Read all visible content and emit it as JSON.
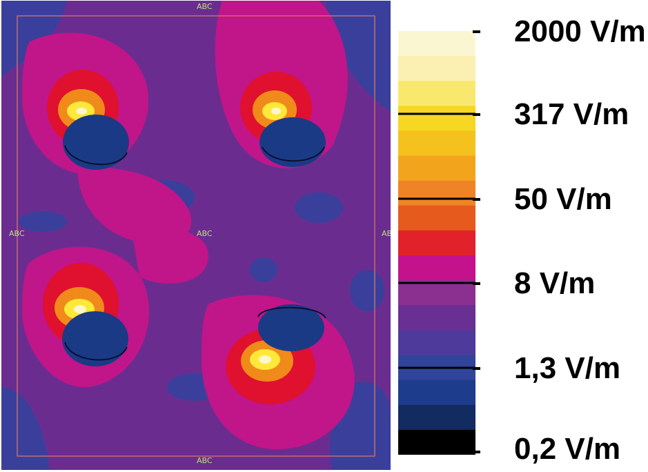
{
  "plot": {
    "markers": {
      "top": "ABC",
      "left": "ABC",
      "center": "ABC",
      "right": "ABC",
      "bottom": "ABC"
    },
    "colors": {
      "background": "#6a2d8f",
      "low_blue": "#3a3f9c",
      "magenta": "#c1158a",
      "red": "#e0102f",
      "orange": "#f08a1a",
      "yellow": "#ffe83a",
      "hot_white": "#fff6cf",
      "dark_blue": "#1b3a86",
      "frame": "#e07a6a"
    }
  },
  "colorbar": {
    "labels": {
      "v2000": "2000 V/m",
      "v317": "317 V/m",
      "v50": "50 V/m",
      "v8": "8 V/m",
      "v1_3": "1,3 V/m",
      "v0_2": "0,2 V/m"
    },
    "bands_top_to_bottom": [
      "#fbf6d2",
      "#fbf0b2",
      "#f9e86e",
      "#f6d722",
      "#f5c11d",
      "#f2a51c",
      "#ee8425",
      "#e65a1e",
      "#e2222a",
      "#c3128c",
      "#8b2f91",
      "#6a2f93",
      "#4e3a9b",
      "#30449a",
      "#1d3c8b",
      "#122b61",
      "#000000"
    ]
  }
}
